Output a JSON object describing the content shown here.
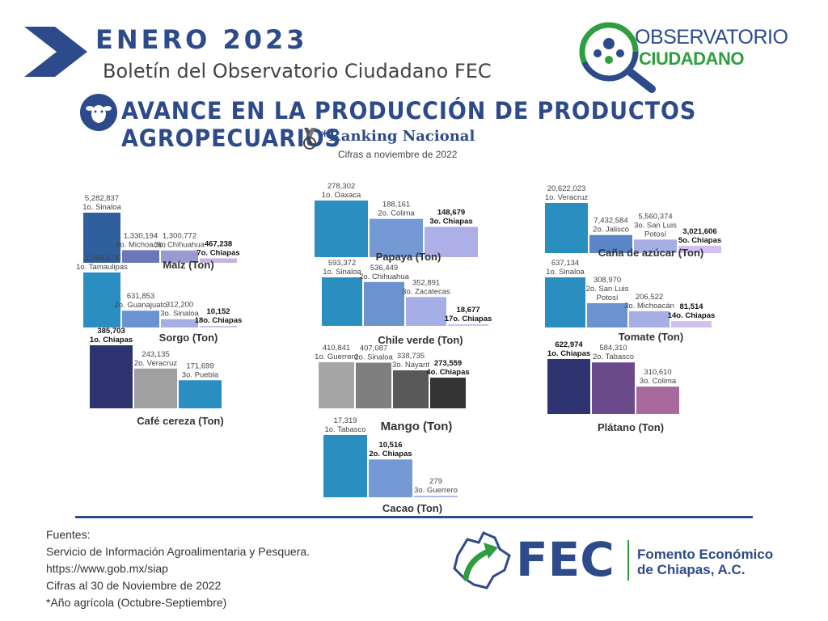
{
  "header": {
    "month": "ENERO  2023",
    "subtitle": "Boletín del Observatorio Ciudadano FEC",
    "title": "AVANCE EN LA PRODUCCIÓN DE PRODUCTOS AGROPECUARIOS",
    "ranking": "*Ranking Nacional",
    "as_of": "Cifras a noviembre de 2022"
  },
  "logo": {
    "line1": "OBSERVATORIO",
    "line2": "CIUDADANO"
  },
  "fec": {
    "short": "FEC",
    "name_line1": "Fomento Económico",
    "name_line2": "de Chiapas, A.C."
  },
  "sources": {
    "lines": [
      "Fuentes:",
      "Servicio de Información Agroalimentaria y Pesquera.",
      "https://www.gob.mx/siap",
      "Cifras al 30 de Noviembre de 2022",
      "*Año agrícola (Octubre-Septiembre)"
    ]
  },
  "colors": {
    "brand": "#2d4a8a",
    "green": "#2e9e3f"
  },
  "chart_data": [
    {
      "type": "bar",
      "title": "Maíz (Ton)",
      "categories": [
        "1o. Sinaloa",
        "2o. Michoacán",
        "3o. Chihuahua",
        "7o. Chiapas"
      ],
      "values": [
        5282837,
        1330194,
        1300772,
        467238
      ],
      "labels": [
        "5,282,837",
        "1,330,194",
        "1,300,772",
        "467,238"
      ],
      "colors": [
        "#2f5f9c",
        "#6b77b8",
        "#9a9ad0",
        "#c6b3e6"
      ]
    },
    {
      "type": "bar",
      "title": "Papaya (Ton)",
      "categories": [
        "1o. Oaxaca",
        "2o. Colima",
        "3o. Chiapas"
      ],
      "values": [
        278302,
        188161,
        148679
      ],
      "labels": [
        "278,302",
        "188,161",
        "148,679"
      ],
      "colors": [
        "#2a8fc0",
        "#7499d4",
        "#adb0e6"
      ]
    },
    {
      "type": "bar",
      "title": "Caña de azúcar  (Ton)",
      "categories": [
        "1o. Veracruz",
        "2o. Jalisco",
        "3o. San Luis Potosí",
        "5o. Chiapas"
      ],
      "values": [
        20622023,
        7432584,
        5560374,
        3021606
      ],
      "labels": [
        "20,622,023",
        "7,432,584",
        "5,560,374",
        "3,021,606"
      ],
      "colors": [
        "#2a8fc0",
        "#5b85c8",
        "#a6aee6",
        "#d4c0ee"
      ]
    },
    {
      "type": "bar",
      "title": "Sorgo  (Ton)",
      "categories": [
        "1o. Tamaulipas",
        "2o. Guanajuato",
        "3o. Sinaloa",
        "18o. Chiapas"
      ],
      "values": [
        2069476,
        631853,
        312200,
        10152
      ],
      "labels": [
        "2,069,476",
        "631,853",
        "312,200",
        "10,152"
      ],
      "colors": [
        "#2a8fc0",
        "#6b93d0",
        "#a6aee6",
        "#d4c0ee"
      ]
    },
    {
      "type": "bar",
      "title": "Chile verde (Ton)",
      "categories": [
        "1o. Sinaloa",
        "2o. Chihuahua",
        "3o. Zacatecas",
        "17o. Chiapas"
      ],
      "values": [
        593372,
        536449,
        352891,
        18677
      ],
      "labels": [
        "593,372",
        "536,449",
        "352,891",
        "18,677"
      ],
      "colors": [
        "#2a8fc0",
        "#6b93d0",
        "#a6aee6",
        "#d4c0ee"
      ]
    },
    {
      "type": "bar",
      "title": "Tomate  (Ton)",
      "categories": [
        "1o. Sinaloa",
        "2o. San Luis Potosí",
        "3o. Michoacán",
        "14o. Chiapas"
      ],
      "values": [
        637134,
        308970,
        206522,
        81514
      ],
      "labels": [
        "637,134",
        "308,970",
        "206,522",
        "81,514"
      ],
      "colors": [
        "#2a8fc0",
        "#6b93d0",
        "#a6aee6",
        "#d4c0ee"
      ]
    },
    {
      "type": "bar",
      "title": "Café cereza (Ton)",
      "categories": [
        "1o. Chiapas",
        "2o. Veracruz",
        "3o. Puebla"
      ],
      "values": [
        385703,
        243135,
        171699
      ],
      "labels": [
        "385,703",
        "243,135",
        "171,699"
      ],
      "colors": [
        "#2f3470",
        "#a0a0a0",
        "#2a8fc0"
      ]
    },
    {
      "type": "bar",
      "title": "Mango (Ton)",
      "categories": [
        "1o. Guerrero",
        "2o. Sinaloa",
        "3o. Nayarit",
        "4o. Chiapas"
      ],
      "values": [
        410841,
        407087,
        338735,
        273559
      ],
      "labels": [
        "410,841",
        "407,087",
        "338,735",
        "273,559"
      ],
      "colors": [
        "#a6a6a6",
        "#7f7f7f",
        "#595959",
        "#333333"
      ]
    },
    {
      "type": "bar",
      "title": "Plátano (Ton)",
      "categories": [
        "1o.  Chiapas",
        "2o. Tabasco",
        "3o. Colima"
      ],
      "values": [
        622974,
        584310,
        310610
      ],
      "labels": [
        "622,974",
        "584,310",
        "310,610"
      ],
      "colors": [
        "#2f3470",
        "#6b4a8c",
        "#a86a9e"
      ]
    },
    {
      "type": "bar",
      "title": "Cacao (Ton)",
      "categories": [
        "1o. Tabasco",
        "2o. Chiapas",
        "3o. Guerrero"
      ],
      "values": [
        17319,
        10516,
        279
      ],
      "labels": [
        "17,319",
        "10,516",
        "279"
      ],
      "colors": [
        "#2a8fc0",
        "#7499d4",
        "#b0b8e8"
      ]
    }
  ]
}
